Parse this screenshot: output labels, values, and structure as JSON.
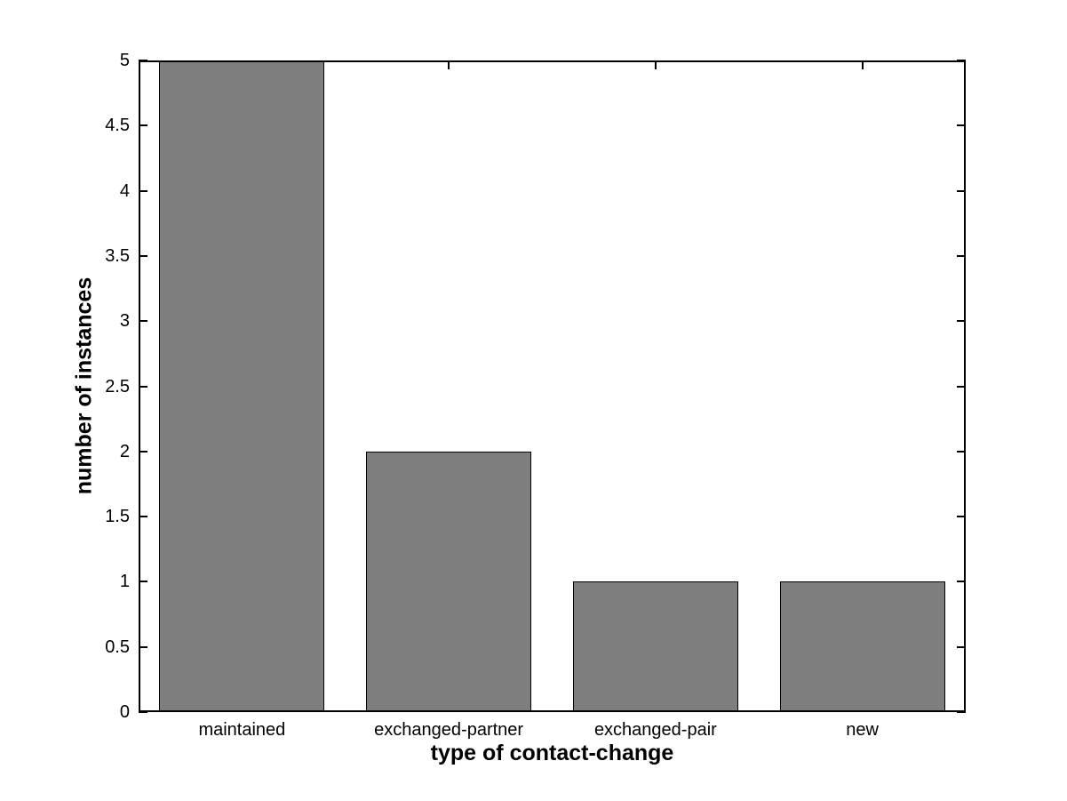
{
  "figure": {
    "background_color": "#ffffff"
  },
  "chart_data": {
    "type": "bar",
    "title": "",
    "xlabel": "type of contact-change",
    "ylabel": "number of instances",
    "categories": [
      "maintained",
      "exchanged-partner",
      "exchanged-pair",
      "new"
    ],
    "values": [
      5,
      2,
      1,
      1
    ],
    "ylim": [
      0,
      5
    ],
    "yticks": [
      0,
      0.5,
      1,
      1.5,
      2,
      2.5,
      3,
      3.5,
      4,
      4.5,
      5
    ],
    "ytick_labels": [
      "0",
      "0.5",
      "1",
      "1.5",
      "2",
      "2.5",
      "3",
      "3.5",
      "4",
      "4.5",
      "5"
    ],
    "bar_width_fraction": 0.8,
    "bar_color": "#7e7e7e",
    "bar_edge_color": "#000000",
    "axis_color": "#000000",
    "grid": false,
    "legend": null
  }
}
